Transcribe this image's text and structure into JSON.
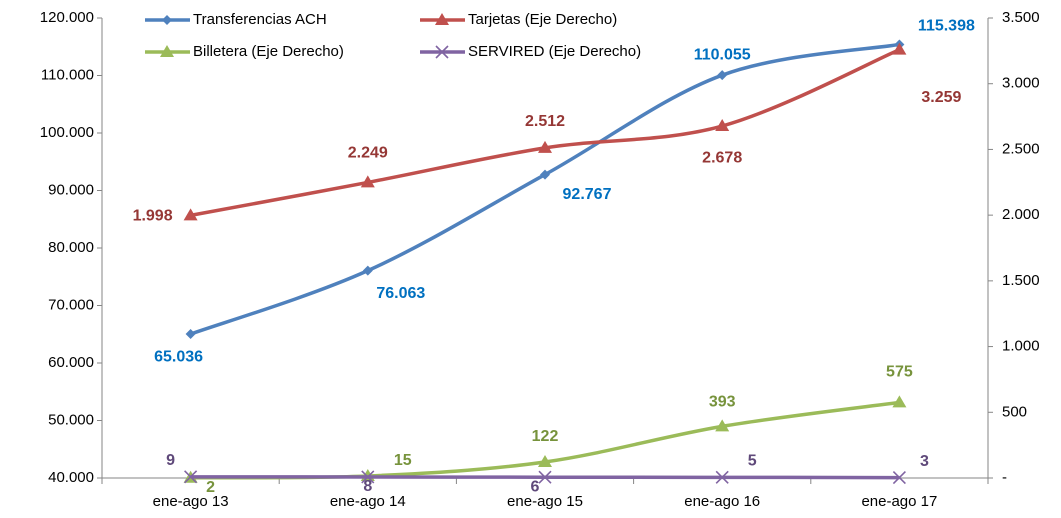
{
  "chart_data": {
    "type": "line",
    "categories": [
      "ene-ago 13",
      "ene-ago 14",
      "ene-ago 15",
      "ene-ago 16",
      "ene-ago 17"
    ],
    "series": [
      {
        "name": "Transferencias ACH",
        "color": "#4f81bd",
        "values": [
          65036,
          76063,
          92767,
          110055,
          115398
        ],
        "value_labels": [
          "65.036",
          "76.063",
          "92.767",
          "110.055",
          "115.398"
        ]
      },
      {
        "name": "Tarjetas (Eje Derecho)",
        "color": "#c0504d",
        "axis": "y2",
        "values": [
          1998,
          2249,
          2512,
          2678,
          3259
        ],
        "value_labels": [
          "1.998",
          "2.249",
          "2.512",
          "2.678",
          "3.259"
        ]
      },
      {
        "name": "Billetera (Eje Derecho)",
        "color": "#9bbb59",
        "axis": "y2",
        "values": [
          2,
          15,
          122,
          393,
          575
        ]
      },
      {
        "name": "SERVIRED (Eje Derecho)",
        "color": "#8064a2",
        "axis": "y2",
        "values": [
          9,
          8,
          6,
          5,
          3
        ]
      }
    ],
    "ylim": [
      40000,
      120000
    ],
    "yticks": [
      {
        "value": 40000,
        "label": "40.000"
      },
      {
        "value": 50000,
        "label": "50.000"
      },
      {
        "value": 60000,
        "label": "60.000"
      },
      {
        "value": 70000,
        "label": "70.000"
      },
      {
        "value": 80000,
        "label": "80.000"
      },
      {
        "value": 90000,
        "label": "90.000"
      },
      {
        "value": 100000,
        "label": "100.000"
      },
      {
        "value": 110000,
        "label": "110.000"
      },
      {
        "value": 120000,
        "label": "120.000"
      }
    ],
    "y2lim": [
      0,
      3500
    ],
    "y2ticks": [
      {
        "value": 0,
        "label": "-"
      },
      500,
      {
        "value": 1000,
        "label": "1.000"
      },
      {
        "value": 1500,
        "label": "1.500"
      },
      {
        "value": 2000,
        "label": "2.000"
      },
      {
        "value": 2500,
        "label": "2.500"
      },
      {
        "value": 3000,
        "label": "3.000"
      },
      {
        "value": 3500,
        "label": "3.500"
      }
    ],
    "grid": false
  }
}
